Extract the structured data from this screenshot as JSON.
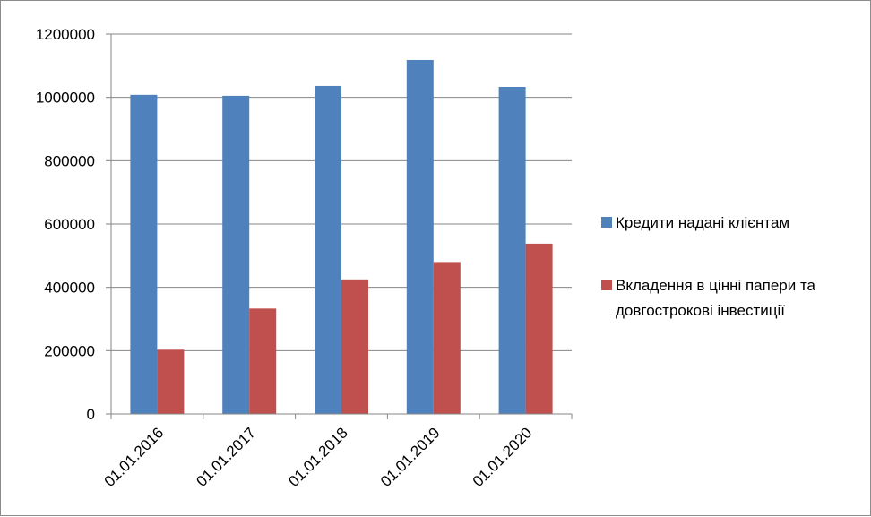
{
  "chart_data": {
    "type": "bar",
    "categories": [
      "01.01.2016",
      "01.01.2017",
      "01.01.2018",
      "01.01.2019",
      "01.01.2020"
    ],
    "series": [
      {
        "name": "Кредити надані клієнтам",
        "color": "#4f81bd",
        "values": [
          1008000,
          1005000,
          1036000,
          1118000,
          1033000
        ]
      },
      {
        "name": "Вкладення в цінні папери та довгострокові інвестиції",
        "name_lines": [
          "Вкладення в цінні папери та",
          "довгострокові інвестиції"
        ],
        "color": "#c0504d",
        "values": [
          203000,
          333000,
          425000,
          480000,
          538000
        ]
      }
    ],
    "y_ticks": [
      "0",
      "200000",
      "400000",
      "600000",
      "800000",
      "1000000",
      "1200000"
    ],
    "ylim": [
      0,
      1200000
    ],
    "grid": true,
    "legend_position": "right",
    "title": "",
    "xlabel": "",
    "ylabel": ""
  }
}
